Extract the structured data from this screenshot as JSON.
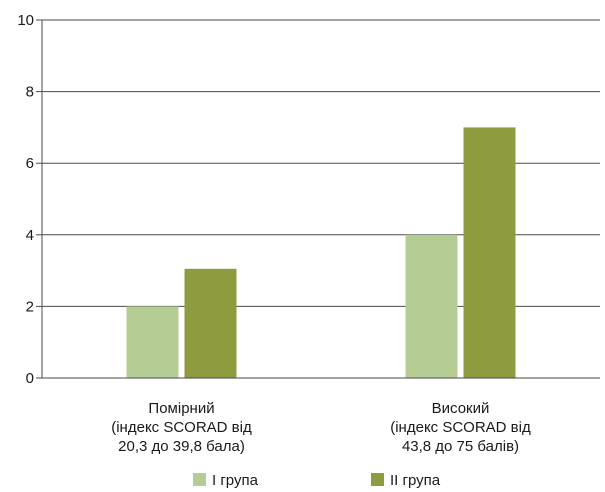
{
  "chart_data": {
    "type": "bar",
    "categories": [
      [
        "Помірний",
        "(індекс SCORAD від",
        "20,3 до 39,8 бала)"
      ],
      [
        "Високий",
        "(індекс SCORAD від",
        "43,8 до 75 балів)"
      ]
    ],
    "series": [
      {
        "name": "I група",
        "values": [
          2,
          4
        ],
        "color": "#b5cc95"
      },
      {
        "name": "II група",
        "values": [
          3.05,
          7
        ],
        "color": "#8f9b3f"
      }
    ],
    "ylim": [
      0,
      10
    ],
    "yticks": [
      0,
      2,
      4,
      6,
      8,
      10
    ],
    "grid": true,
    "legend": "bottom"
  }
}
